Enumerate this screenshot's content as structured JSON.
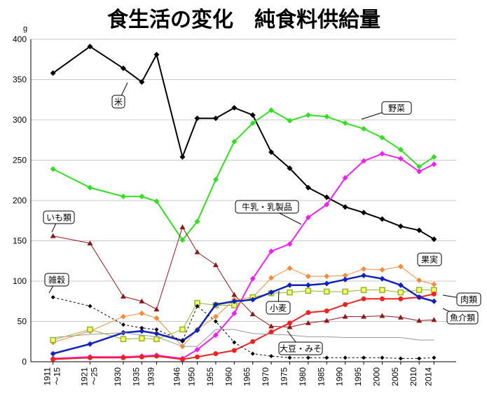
{
  "chart_data": {
    "type": "line",
    "title": "食生活の変化　純食料供給量",
    "ylabel": "g",
    "ylim": [
      0,
      400
    ],
    "yticks": [
      0,
      50,
      100,
      150,
      200,
      250,
      300,
      350,
      400
    ],
    "grid": true,
    "x_labels": [
      "1911～15",
      "1921～25",
      "1930",
      "1935",
      "1939",
      "1946",
      "1950",
      "1955",
      "1960",
      "1965",
      "1970",
      "1975",
      "1980",
      "1985",
      "1990",
      "1995",
      "2000",
      "2005",
      "2010",
      "2014"
    ],
    "x": [
      1911,
      1921,
      1930,
      1935,
      1939,
      1946,
      1950,
      1955,
      1960,
      1965,
      1970,
      1975,
      1980,
      1985,
      1990,
      1995,
      2000,
      2005,
      2010,
      2014
    ],
    "series": [
      {
        "name": "米",
        "color": "#000000",
        "marker": "diamond",
        "values": [
          358,
          391,
          364,
          347,
          381,
          254,
          302,
          302,
          315,
          306,
          260,
          240,
          216,
          204,
          192,
          185,
          177,
          168,
          163,
          152
        ]
      },
      {
        "name": "野菜",
        "color": "#33dd22",
        "marker": "diamond",
        "values": [
          239,
          216,
          205,
          205,
          199,
          151,
          174,
          226,
          273,
          296,
          312,
          299,
          306,
          304,
          296,
          289,
          278,
          263,
          242,
          254
        ]
      },
      {
        "name": "牛乳・乳製品",
        "color": "#ee22ee",
        "marker": "diamond",
        "values": [
          4,
          6,
          6,
          7,
          8,
          4,
          15,
          33,
          60,
          103,
          137,
          146,
          179,
          195,
          228,
          249,
          258,
          252,
          236,
          245
        ]
      },
      {
        "name": "いも類",
        "color": "#8b1a1a",
        "marker": "triangle",
        "values": [
          156,
          147,
          81,
          75,
          65,
          167,
          136,
          120,
          83,
          59,
          44,
          43,
          48,
          51,
          56,
          56,
          57,
          55,
          51,
          52
        ]
      },
      {
        "name": "果実",
        "color": "#f08c3c",
        "marker": "diamond",
        "values": [
          24,
          38,
          56,
          60,
          54,
          19,
          40,
          56,
          77,
          80,
          104,
          116,
          106,
          106,
          107,
          115,
          114,
          118,
          101,
          96
        ]
      },
      {
        "name": "小麦",
        "color": "#8db52c",
        "marker": "square",
        "values": [
          27,
          40,
          28,
          29,
          28,
          40,
          73,
          70,
          70,
          80,
          85,
          86,
          88,
          87,
          87,
          89,
          89,
          86,
          89,
          89
        ]
      },
      {
        "name": "肉類",
        "color": "#ee2222",
        "marker": "circle",
        "values": [
          3,
          5,
          5,
          6,
          7,
          3,
          6,
          10,
          14,
          25,
          37,
          48,
          61,
          63,
          71,
          78,
          78,
          78,
          80,
          84
        ]
      },
      {
        "name": "魚介類",
        "color": "#1122bb",
        "marker": "diamond",
        "values": [
          10,
          22,
          36,
          38,
          35,
          26,
          39,
          71,
          75,
          77,
          86,
          95,
          95,
          97,
          102,
          107,
          103,
          95,
          80,
          75
        ]
      },
      {
        "name": "大豆・みそ",
        "color": "#999999",
        "marker": "none",
        "values": [
          30,
          34,
          36,
          33,
          31,
          19,
          19,
          40,
          40,
          35,
          34,
          33,
          31,
          31,
          30,
          30,
          30,
          30,
          27,
          27
        ]
      },
      {
        "name": "雑穀",
        "color": "#000000",
        "marker": "diamond-small",
        "dashed": true,
        "values": [
          80,
          69,
          46,
          42,
          40,
          26,
          69,
          50,
          24,
          10,
          7,
          5,
          5,
          5,
          5,
          5,
          5,
          4,
          4,
          5
        ]
      }
    ]
  }
}
